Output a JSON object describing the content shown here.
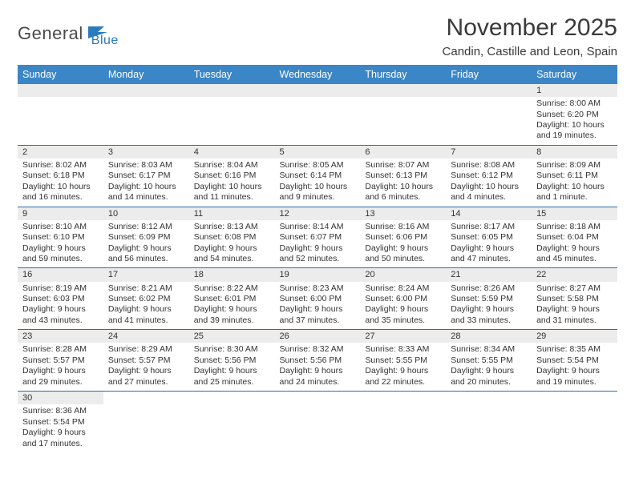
{
  "logo": {
    "part1": "General",
    "part2": "Blue"
  },
  "title": "November 2025",
  "location": "Candin, Castille and Leon, Spain",
  "weekdays": [
    "Sunday",
    "Monday",
    "Tuesday",
    "Wednesday",
    "Thursday",
    "Friday",
    "Saturday"
  ],
  "colors": {
    "header_bg": "#3b86c6",
    "header_text": "#ffffff",
    "daynum_bg": "#ececec",
    "row_border": "#2e6ca8",
    "logo_blue": "#2b7bbf",
    "text": "#333333"
  },
  "weeks": [
    [
      null,
      null,
      null,
      null,
      null,
      null,
      {
        "n": "1",
        "sr": "Sunrise: 8:00 AM",
        "ss": "Sunset: 6:20 PM",
        "dl1": "Daylight: 10 hours",
        "dl2": "and 19 minutes."
      }
    ],
    [
      {
        "n": "2",
        "sr": "Sunrise: 8:02 AM",
        "ss": "Sunset: 6:18 PM",
        "dl1": "Daylight: 10 hours",
        "dl2": "and 16 minutes."
      },
      {
        "n": "3",
        "sr": "Sunrise: 8:03 AM",
        "ss": "Sunset: 6:17 PM",
        "dl1": "Daylight: 10 hours",
        "dl2": "and 14 minutes."
      },
      {
        "n": "4",
        "sr": "Sunrise: 8:04 AM",
        "ss": "Sunset: 6:16 PM",
        "dl1": "Daylight: 10 hours",
        "dl2": "and 11 minutes."
      },
      {
        "n": "5",
        "sr": "Sunrise: 8:05 AM",
        "ss": "Sunset: 6:14 PM",
        "dl1": "Daylight: 10 hours",
        "dl2": "and 9 minutes."
      },
      {
        "n": "6",
        "sr": "Sunrise: 8:07 AM",
        "ss": "Sunset: 6:13 PM",
        "dl1": "Daylight: 10 hours",
        "dl2": "and 6 minutes."
      },
      {
        "n": "7",
        "sr": "Sunrise: 8:08 AM",
        "ss": "Sunset: 6:12 PM",
        "dl1": "Daylight: 10 hours",
        "dl2": "and 4 minutes."
      },
      {
        "n": "8",
        "sr": "Sunrise: 8:09 AM",
        "ss": "Sunset: 6:11 PM",
        "dl1": "Daylight: 10 hours",
        "dl2": "and 1 minute."
      }
    ],
    [
      {
        "n": "9",
        "sr": "Sunrise: 8:10 AM",
        "ss": "Sunset: 6:10 PM",
        "dl1": "Daylight: 9 hours",
        "dl2": "and 59 minutes."
      },
      {
        "n": "10",
        "sr": "Sunrise: 8:12 AM",
        "ss": "Sunset: 6:09 PM",
        "dl1": "Daylight: 9 hours",
        "dl2": "and 56 minutes."
      },
      {
        "n": "11",
        "sr": "Sunrise: 8:13 AM",
        "ss": "Sunset: 6:08 PM",
        "dl1": "Daylight: 9 hours",
        "dl2": "and 54 minutes."
      },
      {
        "n": "12",
        "sr": "Sunrise: 8:14 AM",
        "ss": "Sunset: 6:07 PM",
        "dl1": "Daylight: 9 hours",
        "dl2": "and 52 minutes."
      },
      {
        "n": "13",
        "sr": "Sunrise: 8:16 AM",
        "ss": "Sunset: 6:06 PM",
        "dl1": "Daylight: 9 hours",
        "dl2": "and 50 minutes."
      },
      {
        "n": "14",
        "sr": "Sunrise: 8:17 AM",
        "ss": "Sunset: 6:05 PM",
        "dl1": "Daylight: 9 hours",
        "dl2": "and 47 minutes."
      },
      {
        "n": "15",
        "sr": "Sunrise: 8:18 AM",
        "ss": "Sunset: 6:04 PM",
        "dl1": "Daylight: 9 hours",
        "dl2": "and 45 minutes."
      }
    ],
    [
      {
        "n": "16",
        "sr": "Sunrise: 8:19 AM",
        "ss": "Sunset: 6:03 PM",
        "dl1": "Daylight: 9 hours",
        "dl2": "and 43 minutes."
      },
      {
        "n": "17",
        "sr": "Sunrise: 8:21 AM",
        "ss": "Sunset: 6:02 PM",
        "dl1": "Daylight: 9 hours",
        "dl2": "and 41 minutes."
      },
      {
        "n": "18",
        "sr": "Sunrise: 8:22 AM",
        "ss": "Sunset: 6:01 PM",
        "dl1": "Daylight: 9 hours",
        "dl2": "and 39 minutes."
      },
      {
        "n": "19",
        "sr": "Sunrise: 8:23 AM",
        "ss": "Sunset: 6:00 PM",
        "dl1": "Daylight: 9 hours",
        "dl2": "and 37 minutes."
      },
      {
        "n": "20",
        "sr": "Sunrise: 8:24 AM",
        "ss": "Sunset: 6:00 PM",
        "dl1": "Daylight: 9 hours",
        "dl2": "and 35 minutes."
      },
      {
        "n": "21",
        "sr": "Sunrise: 8:26 AM",
        "ss": "Sunset: 5:59 PM",
        "dl1": "Daylight: 9 hours",
        "dl2": "and 33 minutes."
      },
      {
        "n": "22",
        "sr": "Sunrise: 8:27 AM",
        "ss": "Sunset: 5:58 PM",
        "dl1": "Daylight: 9 hours",
        "dl2": "and 31 minutes."
      }
    ],
    [
      {
        "n": "23",
        "sr": "Sunrise: 8:28 AM",
        "ss": "Sunset: 5:57 PM",
        "dl1": "Daylight: 9 hours",
        "dl2": "and 29 minutes."
      },
      {
        "n": "24",
        "sr": "Sunrise: 8:29 AM",
        "ss": "Sunset: 5:57 PM",
        "dl1": "Daylight: 9 hours",
        "dl2": "and 27 minutes."
      },
      {
        "n": "25",
        "sr": "Sunrise: 8:30 AM",
        "ss": "Sunset: 5:56 PM",
        "dl1": "Daylight: 9 hours",
        "dl2": "and 25 minutes."
      },
      {
        "n": "26",
        "sr": "Sunrise: 8:32 AM",
        "ss": "Sunset: 5:56 PM",
        "dl1": "Daylight: 9 hours",
        "dl2": "and 24 minutes."
      },
      {
        "n": "27",
        "sr": "Sunrise: 8:33 AM",
        "ss": "Sunset: 5:55 PM",
        "dl1": "Daylight: 9 hours",
        "dl2": "and 22 minutes."
      },
      {
        "n": "28",
        "sr": "Sunrise: 8:34 AM",
        "ss": "Sunset: 5:55 PM",
        "dl1": "Daylight: 9 hours",
        "dl2": "and 20 minutes."
      },
      {
        "n": "29",
        "sr": "Sunrise: 8:35 AM",
        "ss": "Sunset: 5:54 PM",
        "dl1": "Daylight: 9 hours",
        "dl2": "and 19 minutes."
      }
    ],
    [
      {
        "n": "30",
        "sr": "Sunrise: 8:36 AM",
        "ss": "Sunset: 5:54 PM",
        "dl1": "Daylight: 9 hours",
        "dl2": "and 17 minutes."
      },
      null,
      null,
      null,
      null,
      null,
      null
    ]
  ]
}
